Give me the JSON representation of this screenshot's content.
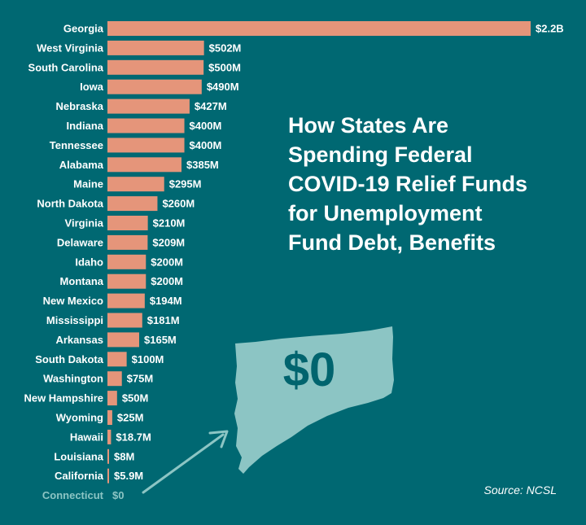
{
  "chart_data": {
    "type": "bar",
    "orientation": "horizontal",
    "title_lines": [
      "How States Are",
      "Spending Federal",
      "COVID-19 Relief Funds",
      "for Unemployment",
      "Fund Debt, Benefits"
    ],
    "source": "Source: NCSL",
    "unit": "USD millions",
    "categories": [
      "Georgia",
      "West Virginia",
      "South Carolina",
      "Iowa",
      "Nebraska",
      "Indiana",
      "Tennessee",
      "Alabama",
      "Maine",
      "North Dakota",
      "Virginia",
      "Delaware",
      "Idaho",
      "Montana",
      "New Mexico",
      "Mississippi",
      "Arkansas",
      "South Dakota",
      "Washington",
      "New Hampshire",
      "Wyoming",
      "Hawaii",
      "Louisiana",
      "California",
      "Connecticut"
    ],
    "values": [
      2200,
      502,
      500,
      490,
      427,
      400,
      400,
      385,
      295,
      260,
      210,
      209,
      200,
      200,
      194,
      181,
      165,
      100,
      75,
      50,
      25,
      18.7,
      8,
      5.9,
      0
    ],
    "labels": [
      "$2.2B",
      "$502M",
      "$500M",
      "$490M",
      "$427M",
      "$400M",
      "$400M",
      "$385M",
      "$295M",
      "$260M",
      "$210M",
      "$209M",
      "$200M",
      "$200M",
      "$194M",
      "$181M",
      "$165M",
      "$100M",
      "$75M",
      "$50M",
      "$25M",
      "$18.7M",
      "$8M",
      "$5.9M",
      "$0"
    ],
    "highlight": {
      "category": "Connecticut",
      "value": 0,
      "callout": "$0"
    },
    "colors": {
      "background": "#006872",
      "bar": "#e5957a",
      "text": "#ffffff",
      "highlight": "#8cc5c4"
    }
  }
}
